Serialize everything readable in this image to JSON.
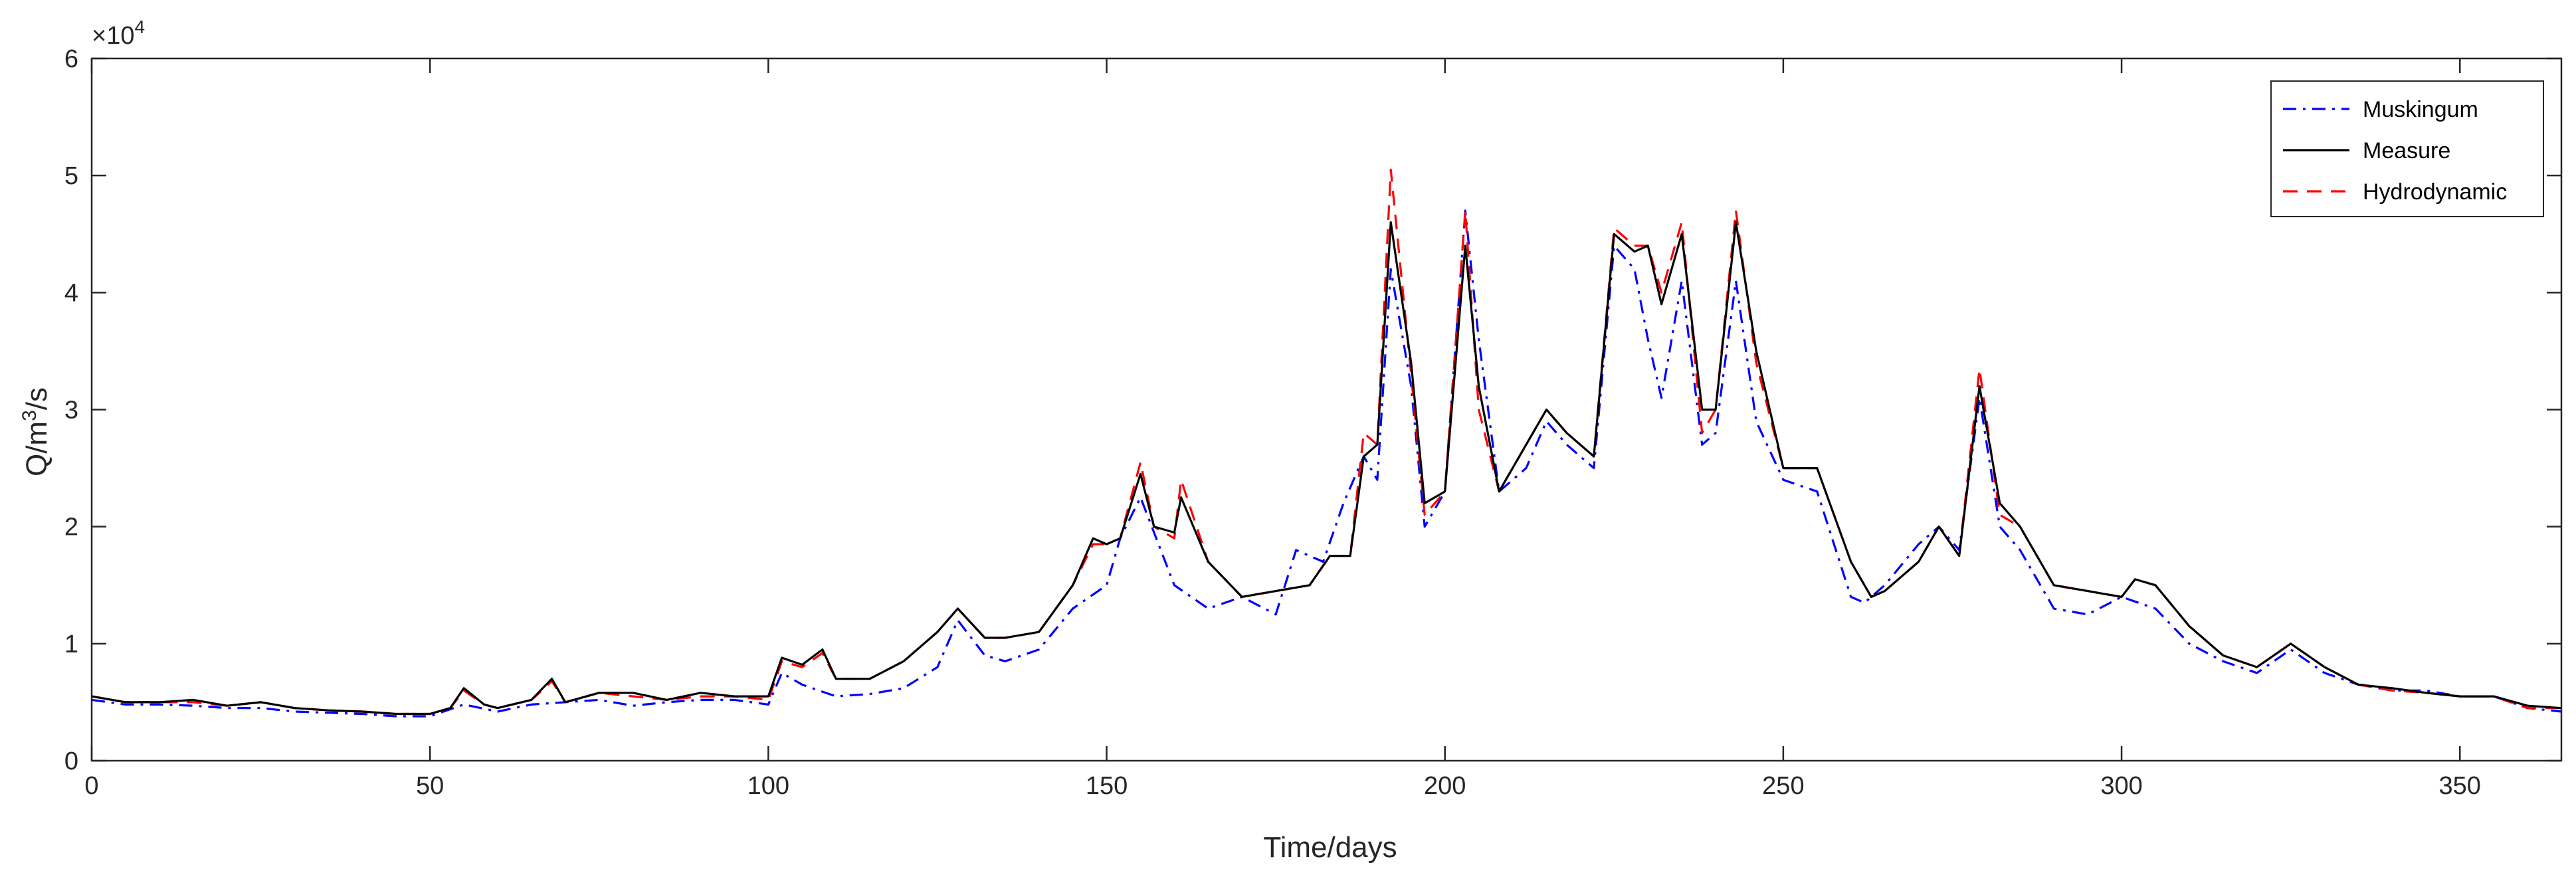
{
  "chart_data": {
    "type": "line",
    "xlabel": "Time/days",
    "ylabel_base": "Q/m",
    "ylabel_sup": "3",
    "ylabel_tail": "/s",
    "exponent_base": "×10",
    "exponent_power": "4",
    "xlim": [
      0,
      365
    ],
    "ylim": [
      0,
      6
    ],
    "xticks": [
      0,
      50,
      100,
      150,
      200,
      250,
      300,
      350
    ],
    "yticks": [
      0,
      1,
      2,
      3,
      4,
      5,
      6
    ],
    "grid": false,
    "legend_position": "top-right",
    "legend": [
      "Muskingum",
      "Measure",
      "Hydrodynamic"
    ],
    "series": [
      {
        "name": "Muskingum",
        "color": "#0000ff",
        "style": "dashdot",
        "x": [
          0,
          5,
          10,
          15,
          20,
          25,
          30,
          35,
          40,
          45,
          50,
          55,
          60,
          65,
          70,
          75,
          80,
          85,
          90,
          95,
          100,
          102,
          105,
          110,
          115,
          120,
          125,
          128,
          132,
          135,
          140,
          145,
          150,
          152,
          155,
          160,
          165,
          170,
          175,
          178,
          182,
          185,
          188,
          190,
          192,
          195,
          197,
          200,
          203,
          205,
          208,
          212,
          215,
          218,
          222,
          225,
          228,
          230,
          232,
          235,
          238,
          240,
          243,
          246,
          250,
          255,
          260,
          262,
          265,
          270,
          273,
          276,
          279,
          282,
          285,
          290,
          295,
          300,
          305,
          310,
          315,
          320,
          325,
          330,
          335,
          340,
          345,
          350,
          355,
          360,
          365
        ],
        "y": [
          0.52,
          0.48,
          0.48,
          0.47,
          0.45,
          0.45,
          0.42,
          0.41,
          0.4,
          0.38,
          0.38,
          0.48,
          0.42,
          0.48,
          0.5,
          0.52,
          0.47,
          0.5,
          0.52,
          0.52,
          0.48,
          0.75,
          0.65,
          0.55,
          0.57,
          0.62,
          0.8,
          1.2,
          0.9,
          0.85,
          0.95,
          1.3,
          1.5,
          1.9,
          2.25,
          1.5,
          1.3,
          1.4,
          1.25,
          1.8,
          1.7,
          2.2,
          2.6,
          2.4,
          4.2,
          3.2,
          2.0,
          2.3,
          4.7,
          3.6,
          2.3,
          2.5,
          2.9,
          2.7,
          2.5,
          4.4,
          4.2,
          3.6,
          3.1,
          4.1,
          2.7,
          2.8,
          4.1,
          2.9,
          2.4,
          2.3,
          1.4,
          1.35,
          1.5,
          1.85,
          2.0,
          1.8,
          3.1,
          2.0,
          1.8,
          1.3,
          1.25,
          1.4,
          1.3,
          1.0,
          0.85,
          0.75,
          0.95,
          0.75,
          0.65,
          0.6,
          0.6,
          0.55,
          0.55,
          0.45,
          0.42
        ]
      },
      {
        "name": "Measure",
        "color": "#000000",
        "style": "solid",
        "x": [
          0,
          5,
          10,
          15,
          20,
          25,
          30,
          35,
          40,
          45,
          50,
          53,
          55,
          58,
          60,
          65,
          68,
          70,
          75,
          80,
          85,
          90,
          95,
          100,
          102,
          105,
          108,
          110,
          115,
          120,
          125,
          128,
          132,
          135,
          140,
          145,
          148,
          150,
          152,
          155,
          157,
          160,
          161,
          165,
          170,
          175,
          180,
          183,
          186,
          188,
          190,
          192,
          195,
          197,
          200,
          203,
          205,
          208,
          212,
          215,
          218,
          222,
          225,
          228,
          230,
          232,
          235,
          238,
          240,
          243,
          246,
          250,
          255,
          260,
          263,
          265,
          270,
          273,
          276,
          279,
          282,
          285,
          290,
          295,
          300,
          302,
          305,
          310,
          315,
          320,
          325,
          330,
          335,
          340,
          345,
          350,
          355,
          360,
          365
        ],
        "y": [
          0.55,
          0.5,
          0.5,
          0.52,
          0.47,
          0.5,
          0.45,
          0.43,
          0.42,
          0.4,
          0.4,
          0.45,
          0.62,
          0.48,
          0.45,
          0.52,
          0.7,
          0.5,
          0.58,
          0.58,
          0.52,
          0.58,
          0.55,
          0.55,
          0.88,
          0.82,
          0.95,
          0.7,
          0.7,
          0.85,
          1.1,
          1.3,
          1.05,
          1.05,
          1.1,
          1.5,
          1.9,
          1.85,
          1.9,
          2.45,
          2.0,
          1.95,
          2.25,
          1.7,
          1.4,
          1.45,
          1.5,
          1.75,
          1.75,
          2.6,
          2.7,
          4.6,
          3.4,
          2.2,
          2.3,
          4.4,
          3.2,
          2.3,
          2.7,
          3.0,
          2.8,
          2.6,
          4.5,
          4.35,
          4.4,
          3.9,
          4.5,
          3.0,
          3.0,
          4.6,
          3.5,
          2.5,
          2.5,
          1.7,
          1.4,
          1.45,
          1.7,
          2.0,
          1.75,
          3.2,
          2.2,
          2.0,
          1.5,
          1.45,
          1.4,
          1.55,
          1.5,
          1.15,
          0.9,
          0.8,
          1.0,
          0.8,
          0.65,
          0.62,
          0.58,
          0.55,
          0.55,
          0.47,
          0.45
        ]
      },
      {
        "name": "Hydrodynamic",
        "color": "#ff0000",
        "style": "dashed",
        "x": [
          0,
          5,
          10,
          15,
          20,
          25,
          30,
          35,
          40,
          45,
          50,
          53,
          55,
          58,
          60,
          65,
          68,
          70,
          75,
          80,
          85,
          90,
          95,
          100,
          102,
          105,
          108,
          110,
          115,
          120,
          125,
          128,
          132,
          135,
          140,
          145,
          148,
          150,
          152,
          155,
          157,
          160,
          161,
          165,
          170,
          175,
          180,
          183,
          186,
          188,
          190,
          192,
          195,
          197,
          200,
          203,
          205,
          208,
          212,
          215,
          218,
          222,
          225,
          228,
          230,
          232,
          235,
          238,
          240,
          243,
          246,
          250,
          255,
          260,
          263,
          265,
          270,
          273,
          276,
          279,
          282,
          285,
          290,
          295,
          300,
          302,
          305,
          310,
          315,
          320,
          325,
          330,
          335,
          340,
          345,
          350,
          355,
          360,
          365
        ],
        "y": [
          0.55,
          0.5,
          0.5,
          0.5,
          0.47,
          0.5,
          0.45,
          0.43,
          0.42,
          0.4,
          0.4,
          0.45,
          0.6,
          0.48,
          0.45,
          0.52,
          0.68,
          0.5,
          0.58,
          0.55,
          0.52,
          0.55,
          0.55,
          0.52,
          0.85,
          0.8,
          0.92,
          0.7,
          0.7,
          0.85,
          1.1,
          1.3,
          1.05,
          1.05,
          1.1,
          1.5,
          1.85,
          1.85,
          1.9,
          2.55,
          2.0,
          1.9,
          2.4,
          1.7,
          1.4,
          1.45,
          1.5,
          1.75,
          1.75,
          2.8,
          2.7,
          5.05,
          3.3,
          2.1,
          2.3,
          4.7,
          3.0,
          2.3,
          2.7,
          3.0,
          2.8,
          2.6,
          4.55,
          4.4,
          4.4,
          4.0,
          4.6,
          2.8,
          3.0,
          4.7,
          3.4,
          2.5,
          2.5,
          1.7,
          1.4,
          1.45,
          1.7,
          2.0,
          1.75,
          3.35,
          2.1,
          2.0,
          1.5,
          1.45,
          1.4,
          1.55,
          1.5,
          1.15,
          0.9,
          0.8,
          1.0,
          0.8,
          0.65,
          0.6,
          0.58,
          0.55,
          0.55,
          0.45,
          0.45
        ]
      }
    ]
  }
}
